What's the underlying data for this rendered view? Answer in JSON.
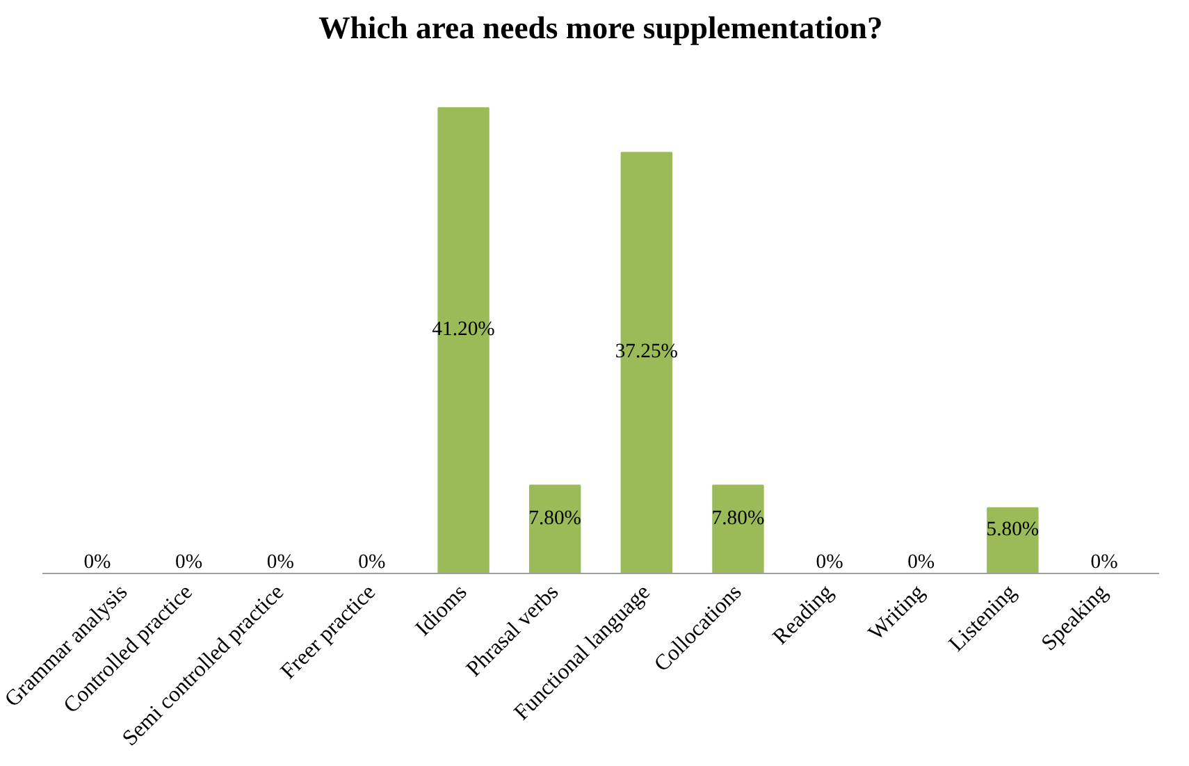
{
  "chart_data": {
    "type": "bar",
    "title": "Which area needs more supplementation?",
    "categories": [
      "Grammar analysis",
      "Controlled practice",
      "Semi controlled practice",
      "Freer practice",
      "Idioms",
      "Phrasal verbs",
      "Functional language",
      "Collocations",
      "Reading",
      "Writing",
      "Listening",
      "Speaking"
    ],
    "values": [
      0,
      0,
      0,
      0,
      41.2,
      7.8,
      37.25,
      7.8,
      0,
      0,
      5.8,
      0
    ],
    "value_labels": [
      "0%",
      "0%",
      "0%",
      "0%",
      "41.20%",
      "7.80%",
      "37.25%",
      "7.80%",
      "0%",
      "0%",
      "5.80%",
      "0%"
    ],
    "color": "#9bbb59"
  }
}
